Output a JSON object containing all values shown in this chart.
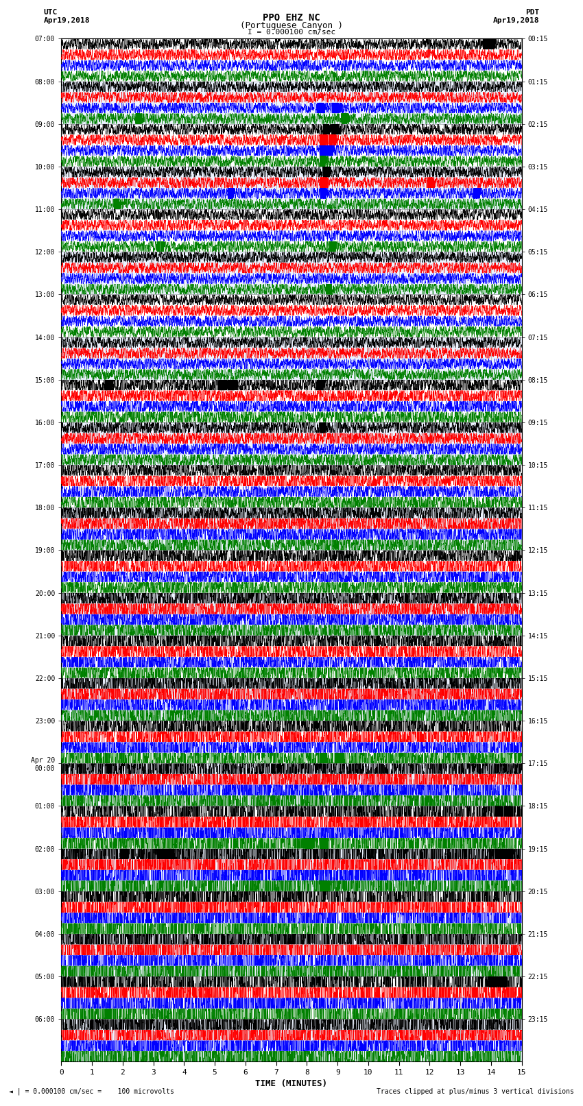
{
  "title_line1": "PPO EHZ NC",
  "title_line2": "(Portuguese Canyon )",
  "scale_label": "I = 0.000100 cm/sec",
  "left_top_label": "UTC\nApr19,2018",
  "right_top_label": "PDT\nApr19,2018",
  "bottom_note1": "◄ | = 0.000100 cm/sec =    100 microvolts",
  "bottom_note2": "Traces clipped at plus/minus 3 vertical divisions",
  "xlabel": "TIME (MINUTES)",
  "time_min": 0,
  "time_max": 15,
  "xticks": [
    0,
    1,
    2,
    3,
    4,
    5,
    6,
    7,
    8,
    9,
    10,
    11,
    12,
    13,
    14,
    15
  ],
  "left_times": [
    "07:00",
    "08:00",
    "09:00",
    "10:00",
    "11:00",
    "12:00",
    "13:00",
    "14:00",
    "15:00",
    "16:00",
    "17:00",
    "18:00",
    "19:00",
    "20:00",
    "21:00",
    "22:00",
    "23:00",
    "Apr 20\n00:00",
    "01:00",
    "02:00",
    "03:00",
    "04:00",
    "05:00",
    "06:00"
  ],
  "right_times": [
    "00:15",
    "01:15",
    "02:15",
    "03:15",
    "04:15",
    "05:15",
    "06:15",
    "07:15",
    "08:15",
    "09:15",
    "10:15",
    "11:15",
    "12:15",
    "13:15",
    "14:15",
    "15:15",
    "16:15",
    "17:15",
    "18:15",
    "19:15",
    "20:15",
    "21:15",
    "22:15",
    "23:15"
  ],
  "num_rows": 24,
  "traces_per_row": 4,
  "colors": [
    "black",
    "red",
    "blue",
    "green"
  ],
  "noise_levels": [
    0.12,
    0.12,
    0.12,
    0.12,
    0.12,
    0.12,
    0.12,
    0.12,
    0.18,
    0.15,
    0.2,
    0.22,
    0.25,
    0.28,
    0.32,
    0.38,
    0.42,
    0.5,
    0.7,
    0.85,
    0.9,
    0.9,
    0.85,
    0.6
  ]
}
